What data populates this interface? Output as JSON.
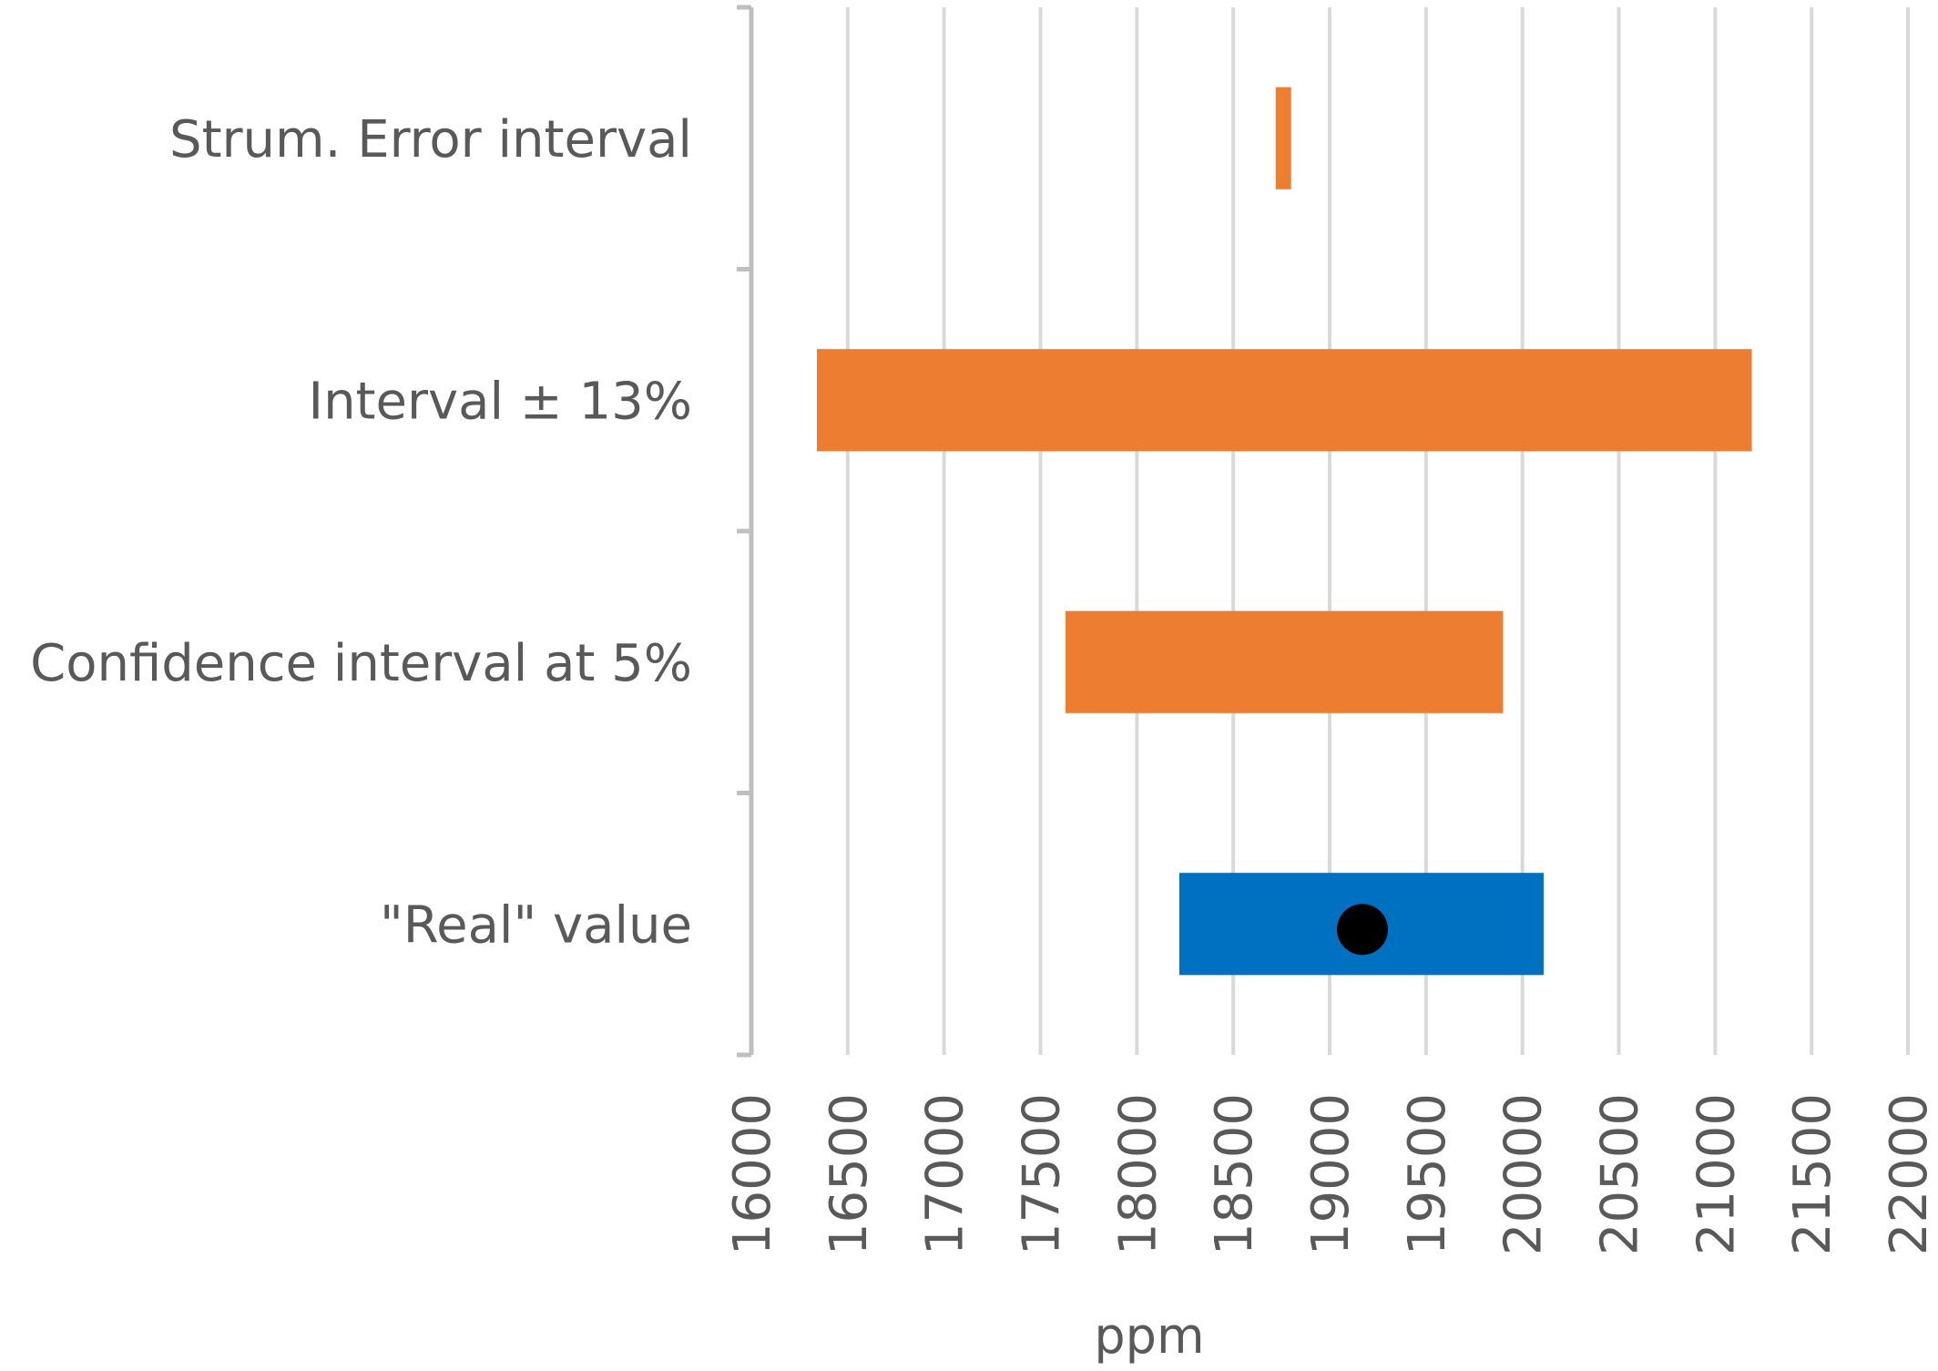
{
  "chart_data": {
    "type": "bar",
    "orientation": "horizontal",
    "subtype": "floating-range",
    "title": "",
    "xlabel": "ppm",
    "ylabel": "",
    "xlim": [
      16000,
      22000
    ],
    "x_ticks": [
      "16000",
      "16500",
      "17000",
      "17500",
      "18000",
      "18500",
      "19000",
      "19500",
      "20000",
      "20500",
      "21000",
      "21500",
      "22000"
    ],
    "grid": "vertical",
    "legend": "none",
    "categories": [
      "Strum. Error interval",
      "Interval ± 13%",
      "Confidence interval at 5%",
      "\"Real\" value"
    ],
    "ranges": [
      {
        "category": "Strum. Error interval",
        "low": 18720,
        "high": 18800,
        "color": "#ED7D31"
      },
      {
        "category": "Interval ± 13%",
        "low": 16340,
        "high": 21190,
        "color": "#ED7D31"
      },
      {
        "category": "Confidence interval at 5%",
        "low": 17630,
        "high": 19900,
        "color": "#ED7D31"
      },
      {
        "category": "\"Real\" value",
        "low": 18220,
        "high": 20110,
        "color": "#0070C0"
      }
    ],
    "points": [
      {
        "category": "\"Real\" value",
        "x": 19170,
        "color": "#000000"
      }
    ],
    "colors": {
      "grid": "#D9D9D9",
      "axis": "#BFBFBF",
      "text": "#595959"
    }
  }
}
